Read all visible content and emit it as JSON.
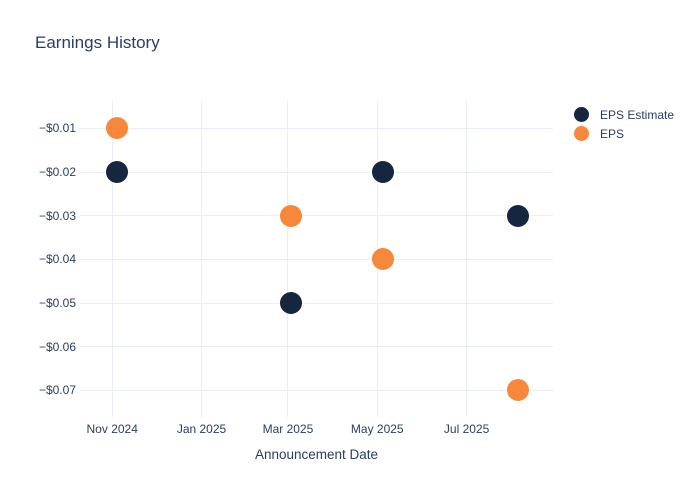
{
  "chart_data": {
    "type": "scatter",
    "title": "Earnings History",
    "xlabel": "Announcement Date",
    "ylabel": "",
    "legend_position": "right",
    "grid": true,
    "background_color": "#ffffff",
    "text_color": "#2a3f5f",
    "grid_color": "#e9edf6",
    "x_range": [
      "2024-10-10",
      "2025-08-29"
    ],
    "y_range": [
      -0.0761,
      -0.0037
    ],
    "x_ticks": [
      {
        "label": "Nov 2024",
        "date": "2024-11-01"
      },
      {
        "label": "Jan 2025",
        "date": "2025-01-01"
      },
      {
        "label": "Mar 2025",
        "date": "2025-03-01"
      },
      {
        "label": "May 2025",
        "date": "2025-05-01"
      },
      {
        "label": "Jul 2025",
        "date": "2025-07-01"
      }
    ],
    "y_ticks": [
      {
        "label": "−$0.01",
        "value": -0.01
      },
      {
        "label": "−$0.02",
        "value": -0.02
      },
      {
        "label": "−$0.03",
        "value": -0.03
      },
      {
        "label": "−$0.04",
        "value": -0.04
      },
      {
        "label": "−$0.05",
        "value": -0.05
      },
      {
        "label": "−$0.06",
        "value": -0.06
      },
      {
        "label": "−$0.07",
        "value": -0.07
      }
    ],
    "series": [
      {
        "name": "EPS Estimate",
        "color": "#16263E",
        "marker": "circle",
        "points": [
          {
            "date": "2024-11-04",
            "value": -0.02
          },
          {
            "date": "2025-03-03",
            "value": -0.05
          },
          {
            "date": "2025-05-05",
            "value": -0.02
          },
          {
            "date": "2025-08-05",
            "value": -0.03
          }
        ]
      },
      {
        "name": "EPS",
        "color": "#F6883D",
        "marker": "circle",
        "points": [
          {
            "date": "2024-11-04",
            "value": -0.01
          },
          {
            "date": "2025-03-03",
            "value": -0.03
          },
          {
            "date": "2025-05-05",
            "value": -0.04
          },
          {
            "date": "2025-08-05",
            "value": -0.07
          }
        ]
      }
    ]
  }
}
